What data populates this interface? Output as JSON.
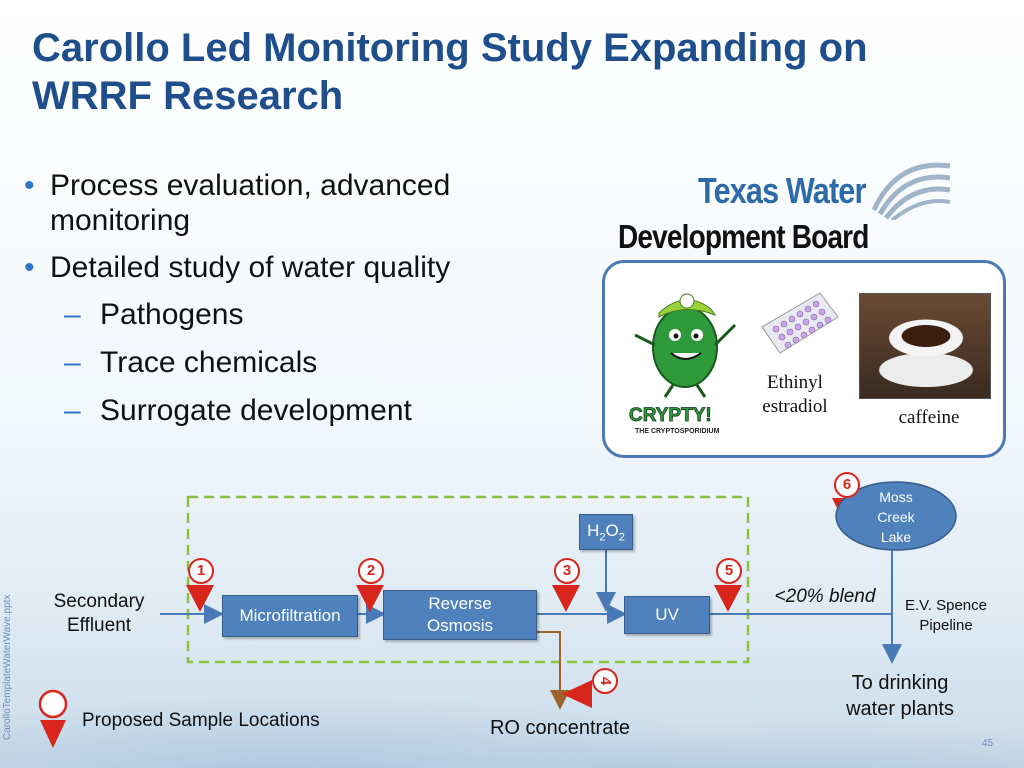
{
  "slide": {
    "title": "Carollo Led Monitoring Study Expanding on WRRF Research",
    "bullets": [
      {
        "text": "Process evaluation, advanced monitoring"
      },
      {
        "text": "Detailed study of water quality"
      }
    ],
    "sub_bullets": [
      "Pathogens",
      "Trace chemicals",
      "Surrogate development"
    ],
    "side_text": "CarolloTemplateWaterWave.pptx",
    "page_number": "45"
  },
  "logo": {
    "line1": "Texas Water",
    "line2": "Development Board"
  },
  "images": {
    "crypty_text": "CRYPTY!",
    "crypty_sub": "THE CRYPTOSPORIDIUM",
    "ethinyl_label_1": "Ethinyl",
    "ethinyl_label_2": "estradiol",
    "caffeine_label": "caffeine"
  },
  "diagram": {
    "source_1": "Secondary",
    "source_2": "Effluent",
    "process_boxes": [
      "Microfiltration",
      "Reverse Osmosis",
      "UV"
    ],
    "h2o2": {
      "base1": "H",
      "sub1": "2",
      "base2": "O",
      "sub2": "2"
    },
    "lake": [
      "Moss",
      "Creek",
      "Lake"
    ],
    "blend": "<20% blend",
    "pipeline_1": "E.V. Spence",
    "pipeline_2": "Pipeline",
    "drinking_1": "To drinking",
    "drinking_2": "water plants",
    "concentrate": "RO concentrate",
    "sample_numbers": [
      "1",
      "2",
      "3",
      "4",
      "5",
      "6"
    ],
    "legend": "Proposed Sample Locations"
  },
  "colors": {
    "title": "#1f4e8c",
    "bullet": "#2e75c9",
    "box": "#4f81bd",
    "marker": "#d8261c",
    "dashed_border": "#8bbf3f",
    "ro_line": "#a0622d"
  }
}
